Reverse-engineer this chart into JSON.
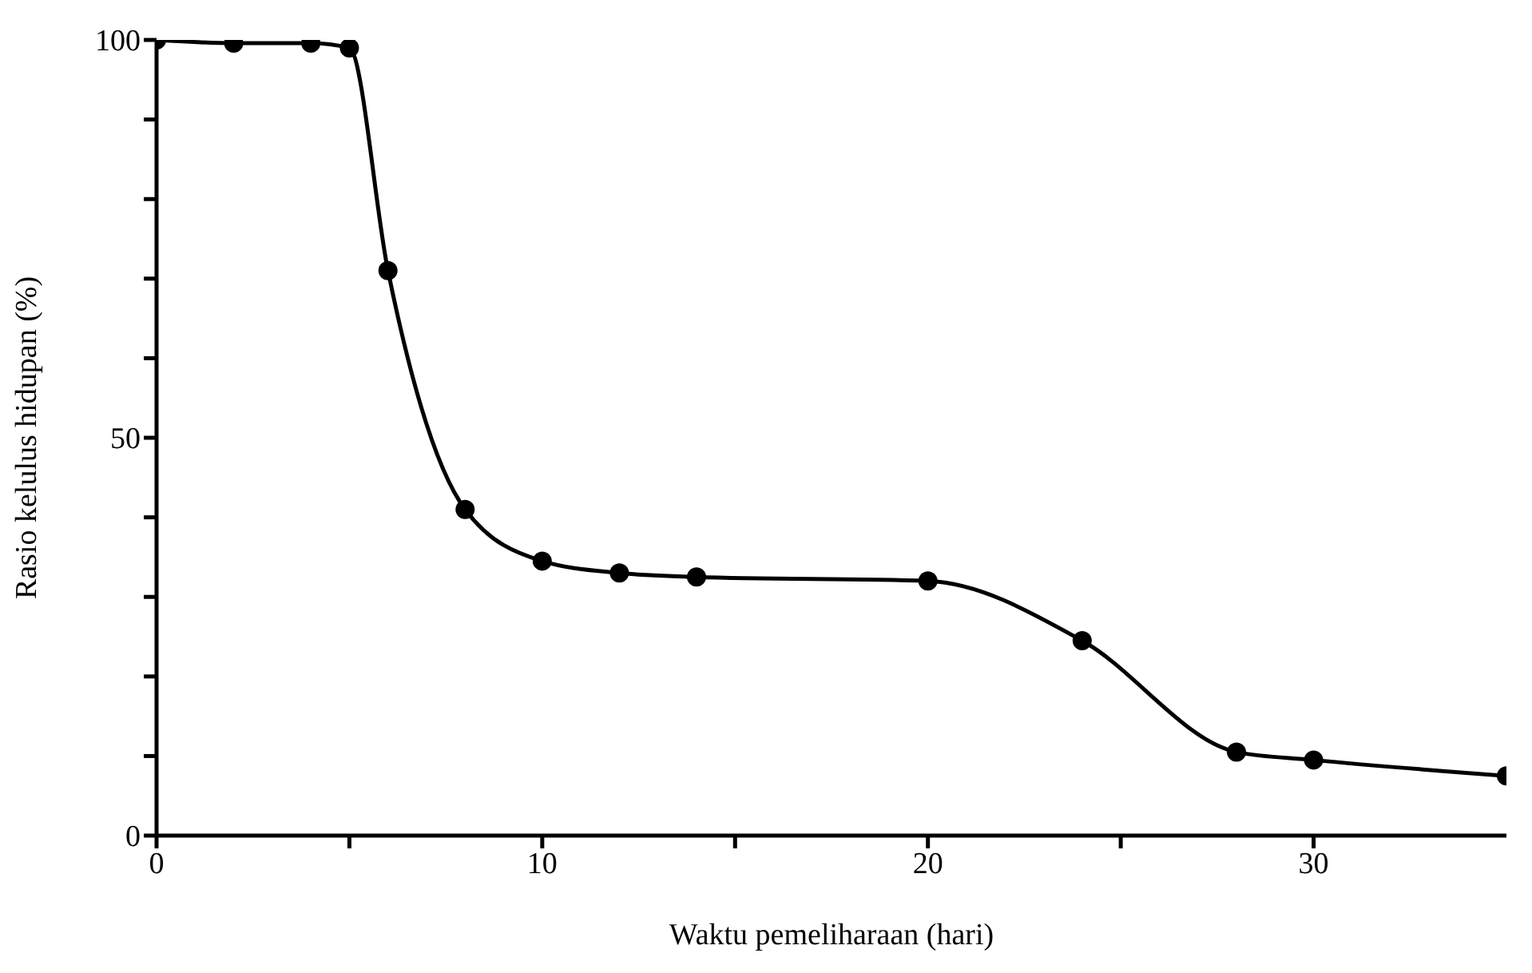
{
  "chart_data": {
    "type": "line",
    "xlabel": "Waktu pemeliharaan (hari)",
    "ylabel": "Rasio kelulus hidupan (%)",
    "x": [
      0,
      2,
      4,
      5,
      6,
      8,
      10,
      12,
      14,
      20,
      24,
      28,
      30,
      35
    ],
    "series": [
      {
        "color": "#000000",
        "values": [
          100,
          99.6,
          99.6,
          99,
          71,
          41,
          34.5,
          33,
          32.5,
          32,
          24.5,
          10.5,
          9.5,
          7.5
        ]
      }
    ],
    "xlim": [
      0,
      35
    ],
    "xticks": [
      0,
      {
        "value": 5,
        "label": null
      },
      10,
      {
        "value": 15,
        "label": null
      },
      20,
      {
        "value": 25,
        "label": null
      },
      30
    ],
    "ylim": [
      0,
      100
    ],
    "yticks": [
      0,
      {
        "value": 10,
        "label": null
      },
      {
        "value": 20,
        "label": null
      },
      {
        "value": 30,
        "label": null
      },
      {
        "value": 40,
        "label": null
      },
      50,
      {
        "value": 60,
        "label": null
      },
      {
        "value": 70,
        "label": null
      },
      {
        "value": 80,
        "label": null
      },
      {
        "value": 90,
        "label": null
      },
      100
    ],
    "grid": false,
    "legend": false,
    "marker": "circle",
    "line_style": "solid"
  }
}
